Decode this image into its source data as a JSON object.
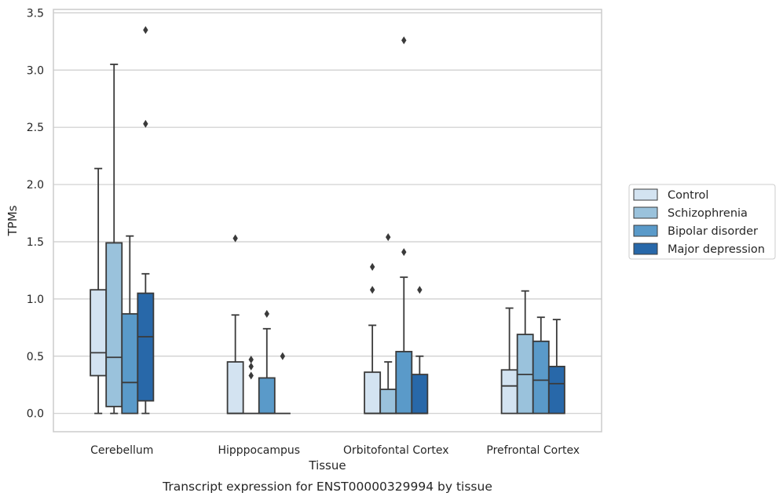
{
  "caption": "Transcript expression for ENST00000329994 by tissue",
  "chart_data": {
    "type": "boxplot",
    "xlabel": "Tissue",
    "ylabel": "TPMs",
    "ylim": [
      -0.16,
      3.53
    ],
    "yticks": [
      0.0,
      0.5,
      1.0,
      1.5,
      2.0,
      2.5,
      3.0,
      3.5
    ],
    "ytick_labels": [
      "0.0",
      "0.5",
      "1.0",
      "1.5",
      "2.0",
      "2.5",
      "3.0",
      "3.5"
    ],
    "grid": "horizontal",
    "legend_position": "right",
    "categories": [
      "Cerebellum",
      "Hipppocampus",
      "Orbitofontal Cortex",
      "Prefrontal Cortex"
    ],
    "series": [
      {
        "name": "Control",
        "color": "#d3e3f1",
        "boxes": [
          {
            "whislo": 0.0,
            "q1": 0.33,
            "med": 0.53,
            "q3": 1.08,
            "whishi": 2.14,
            "fliers": []
          },
          {
            "whislo": 0.0,
            "q1": 0.0,
            "med": 0.0,
            "q3": 0.45,
            "whishi": 0.86,
            "fliers": [
              1.53
            ]
          },
          {
            "whislo": 0.0,
            "q1": 0.0,
            "med": 0.0,
            "q3": 0.36,
            "whishi": 0.77,
            "fliers": [
              1.08,
              1.28
            ]
          },
          {
            "whislo": 0.0,
            "q1": 0.0,
            "med": 0.24,
            "q3": 0.38,
            "whishi": 0.92,
            "fliers": []
          }
        ]
      },
      {
        "name": "Schizophrenia",
        "color": "#9ac2dc",
        "boxes": [
          {
            "whislo": 0.0,
            "q1": 0.06,
            "med": 0.49,
            "q3": 1.49,
            "whishi": 3.05,
            "fliers": []
          },
          {
            "whislo": 0.0,
            "q1": 0.0,
            "med": 0.0,
            "q3": 0.0,
            "whishi": 0.0,
            "fliers": [
              0.33,
              0.41,
              0.47
            ]
          },
          {
            "whislo": 0.0,
            "q1": 0.0,
            "med": 0.0,
            "q3": 0.21,
            "whishi": 0.45,
            "fliers": [
              1.54
            ]
          },
          {
            "whislo": 0.0,
            "q1": 0.0,
            "med": 0.34,
            "q3": 0.69,
            "whishi": 1.07,
            "fliers": []
          }
        ]
      },
      {
        "name": "Bipolar disorder",
        "color": "#5a9ac9",
        "boxes": [
          {
            "whislo": 0.0,
            "q1": 0.0,
            "med": 0.27,
            "q3": 0.87,
            "whishi": 1.55,
            "fliers": []
          },
          {
            "whislo": 0.0,
            "q1": 0.0,
            "med": 0.0,
            "q3": 0.31,
            "whishi": 0.74,
            "fliers": [
              0.87
            ]
          },
          {
            "whislo": 0.0,
            "q1": 0.0,
            "med": 0.0,
            "q3": 0.54,
            "whishi": 1.19,
            "fliers": [
              1.41,
              3.26
            ]
          },
          {
            "whislo": 0.0,
            "q1": 0.0,
            "med": 0.29,
            "q3": 0.63,
            "whishi": 0.84,
            "fliers": []
          }
        ]
      },
      {
        "name": "Major depression",
        "color": "#2868a9",
        "boxes": [
          {
            "whislo": 0.0,
            "q1": 0.11,
            "med": 0.67,
            "q3": 1.05,
            "whishi": 1.22,
            "fliers": [
              2.53,
              3.35
            ]
          },
          {
            "whislo": 0.0,
            "q1": 0.0,
            "med": 0.0,
            "q3": 0.0,
            "whishi": 0.0,
            "fliers": [
              0.5
            ]
          },
          {
            "whislo": 0.0,
            "q1": 0.0,
            "med": 0.0,
            "q3": 0.34,
            "whishi": 0.5,
            "fliers": [
              1.08
            ]
          },
          {
            "whislo": 0.0,
            "q1": 0.0,
            "med": 0.26,
            "q3": 0.41,
            "whishi": 0.82,
            "fliers": []
          }
        ]
      }
    ]
  }
}
